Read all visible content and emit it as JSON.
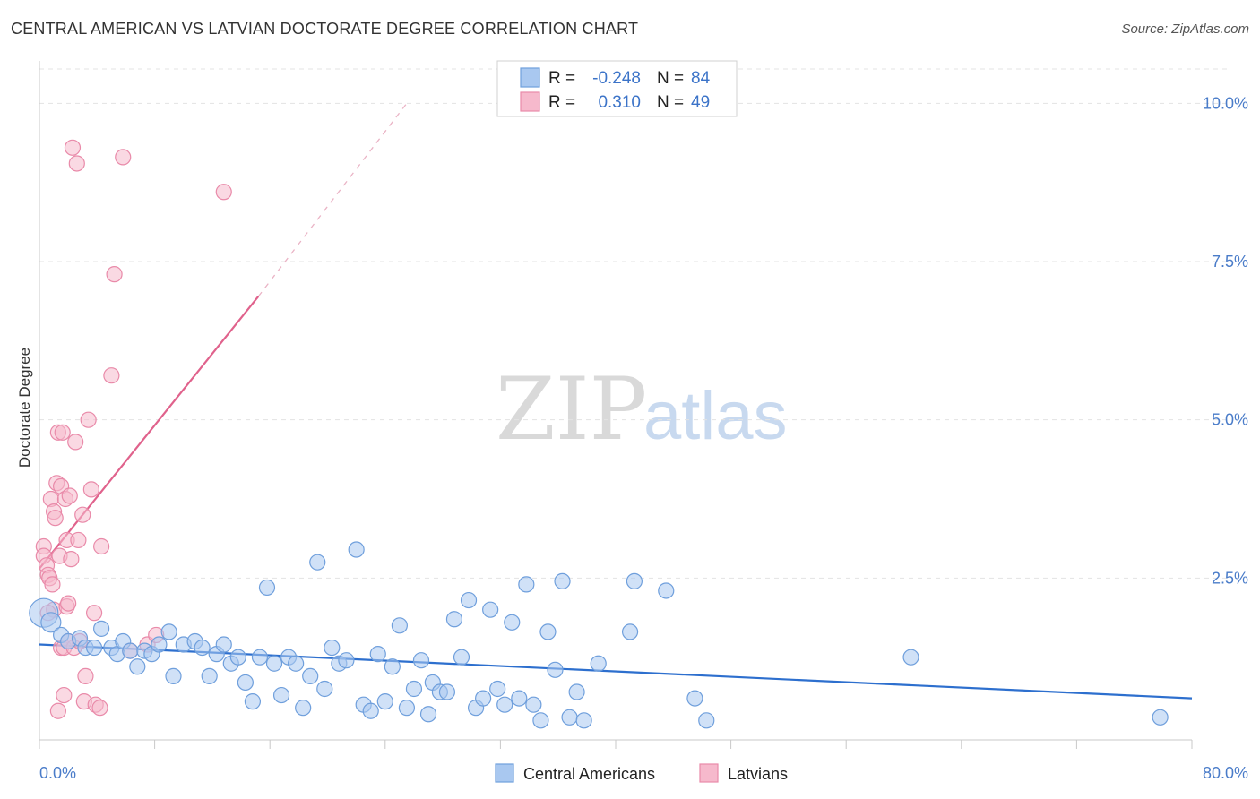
{
  "title": "CENTRAL AMERICAN VS LATVIAN DOCTORATE DEGREE CORRELATION CHART",
  "source": "Source: ZipAtlas.com",
  "watermark": {
    "zip": "ZIP",
    "atlas": "atlas"
  },
  "colors": {
    "blue_fill": "#a9c8f0",
    "blue_stroke": "#6f9fdc",
    "blue_line": "#2d6fce",
    "pink_fill": "#f6b9cc",
    "pink_stroke": "#e98aa9",
    "pink_line": "#e0628c",
    "tick_text": "#4a7cc9",
    "grid": "#e3e3e3"
  },
  "legend": {
    "rows": [
      {
        "r_label": "R =",
        "r_value": "-0.248",
        "n_label": "N =",
        "n_value": "84"
      },
      {
        "r_label": "R =",
        "r_value": "0.310",
        "n_label": "N =",
        "n_value": "49"
      }
    ]
  },
  "chart_data": {
    "type": "scatter",
    "title": "CENTRAL AMERICAN VS LATVIAN DOCTORATE DEGREE CORRELATION CHART",
    "xlabel": "",
    "ylabel": "Doctorate Degree",
    "xlim": [
      0,
      80
    ],
    "ylim": [
      0,
      10.5
    ],
    "x_tick_labels": [
      "0.0%",
      "80.0%"
    ],
    "y_ticks": [
      2.5,
      5.0,
      7.5,
      10.0
    ],
    "y_tick_labels": [
      "2.5%",
      "5.0%",
      "7.5%",
      "10.0%"
    ],
    "grid": true,
    "legend_position": "top-center",
    "series": [
      {
        "name": "Central Americans",
        "color": "#6f9fdc",
        "r": -0.248,
        "n": 84,
        "trend": {
          "x": [
            0,
            80
          ],
          "y": [
            1.45,
            0.6
          ]
        },
        "points": [
          [
            0.3,
            1.95
          ],
          [
            0.8,
            1.8
          ],
          [
            1.5,
            1.6
          ],
          [
            2.0,
            1.5
          ],
          [
            2.8,
            1.55
          ],
          [
            3.2,
            1.4
          ],
          [
            3.8,
            1.4
          ],
          [
            4.3,
            1.7
          ],
          [
            5.0,
            1.4
          ],
          [
            5.4,
            1.3
          ],
          [
            5.8,
            1.5
          ],
          [
            6.3,
            1.35
          ],
          [
            6.8,
            1.1
          ],
          [
            7.3,
            1.35
          ],
          [
            7.8,
            1.3
          ],
          [
            8.3,
            1.45
          ],
          [
            9.0,
            1.65
          ],
          [
            9.3,
            0.95
          ],
          [
            10.0,
            1.45
          ],
          [
            10.8,
            1.5
          ],
          [
            11.3,
            1.4
          ],
          [
            11.8,
            0.95
          ],
          [
            12.3,
            1.3
          ],
          [
            12.8,
            1.45
          ],
          [
            13.3,
            1.15
          ],
          [
            13.8,
            1.25
          ],
          [
            14.3,
            0.85
          ],
          [
            14.8,
            0.55
          ],
          [
            15.3,
            1.25
          ],
          [
            15.8,
            2.35
          ],
          [
            16.3,
            1.15
          ],
          [
            16.8,
            0.65
          ],
          [
            17.3,
            1.25
          ],
          [
            17.8,
            1.15
          ],
          [
            18.3,
            0.45
          ],
          [
            18.8,
            0.95
          ],
          [
            19.3,
            2.75
          ],
          [
            19.8,
            0.75
          ],
          [
            20.3,
            1.4
          ],
          [
            20.8,
            1.15
          ],
          [
            21.3,
            1.2
          ],
          [
            22.0,
            2.95
          ],
          [
            22.5,
            0.5
          ],
          [
            23.0,
            0.4
          ],
          [
            23.5,
            1.3
          ],
          [
            24.0,
            0.55
          ],
          [
            24.5,
            1.1
          ],
          [
            25.0,
            1.75
          ],
          [
            25.5,
            0.45
          ],
          [
            26.0,
            0.75
          ],
          [
            26.5,
            1.2
          ],
          [
            27.0,
            0.35
          ],
          [
            27.3,
            0.85
          ],
          [
            27.8,
            0.7
          ],
          [
            28.3,
            0.7
          ],
          [
            28.8,
            1.85
          ],
          [
            29.3,
            1.25
          ],
          [
            29.8,
            2.15
          ],
          [
            30.3,
            0.45
          ],
          [
            30.8,
            0.6
          ],
          [
            31.3,
            2.0
          ],
          [
            31.8,
            0.75
          ],
          [
            32.3,
            0.5
          ],
          [
            32.8,
            1.8
          ],
          [
            33.3,
            0.6
          ],
          [
            33.8,
            2.4
          ],
          [
            34.3,
            0.5
          ],
          [
            34.8,
            0.25
          ],
          [
            35.3,
            1.65
          ],
          [
            35.8,
            1.05
          ],
          [
            36.3,
            2.45
          ],
          [
            36.8,
            0.3
          ],
          [
            37.3,
            0.7
          ],
          [
            37.8,
            0.25
          ],
          [
            38.8,
            1.15
          ],
          [
            41.0,
            1.65
          ],
          [
            41.3,
            2.45
          ],
          [
            43.5,
            2.3
          ],
          [
            45.5,
            0.6
          ],
          [
            46.3,
            0.25
          ],
          [
            60.5,
            1.25
          ],
          [
            77.8,
            0.3
          ]
        ]
      },
      {
        "name": "Latvians",
        "color": "#e98aa9",
        "r": 0.31,
        "n": 49,
        "trend": {
          "x": [
            0,
            15.2
          ],
          "y": [
            2.65,
            6.95
          ]
        },
        "trend_dashed": {
          "x": [
            15.2,
            25.5
          ],
          "y": [
            6.95,
            10.0
          ]
        },
        "points": [
          [
            0.3,
            3.0
          ],
          [
            0.3,
            2.85
          ],
          [
            0.5,
            2.7
          ],
          [
            0.6,
            2.55
          ],
          [
            0.7,
            2.5
          ],
          [
            0.8,
            3.75
          ],
          [
            0.9,
            2.4
          ],
          [
            1.0,
            3.55
          ],
          [
            1.0,
            2.0
          ],
          [
            1.1,
            3.45
          ],
          [
            1.2,
            4.0
          ],
          [
            1.3,
            4.8
          ],
          [
            1.4,
            2.85
          ],
          [
            1.5,
            3.95
          ],
          [
            1.5,
            1.4
          ],
          [
            1.6,
            4.8
          ],
          [
            1.7,
            1.4
          ],
          [
            1.7,
            0.65
          ],
          [
            1.8,
            3.75
          ],
          [
            1.9,
            2.05
          ],
          [
            1.9,
            3.1
          ],
          [
            2.0,
            2.1
          ],
          [
            2.1,
            3.8
          ],
          [
            2.2,
            2.8
          ],
          [
            2.3,
            9.3
          ],
          [
            2.4,
            1.4
          ],
          [
            2.5,
            4.65
          ],
          [
            2.6,
            9.05
          ],
          [
            2.7,
            3.1
          ],
          [
            2.8,
            1.5
          ],
          [
            3.0,
            3.5
          ],
          [
            3.1,
            0.55
          ],
          [
            3.2,
            0.95
          ],
          [
            3.4,
            5.0
          ],
          [
            3.6,
            3.9
          ],
          [
            3.8,
            1.95
          ],
          [
            3.9,
            0.5
          ],
          [
            4.2,
            0.45
          ],
          [
            4.3,
            3.0
          ],
          [
            5.0,
            5.7
          ],
          [
            5.2,
            7.3
          ],
          [
            5.8,
            9.15
          ],
          [
            6.3,
            1.35
          ],
          [
            7.5,
            1.45
          ],
          [
            8.1,
            1.6
          ],
          [
            12.8,
            8.6
          ],
          [
            1.3,
            0.4
          ],
          [
            2.0,
            1.5
          ],
          [
            0.6,
            1.95
          ]
        ]
      }
    ]
  },
  "bottom_legend": {
    "items": [
      {
        "label": "Central Americans"
      },
      {
        "label": "Latvians"
      }
    ]
  }
}
